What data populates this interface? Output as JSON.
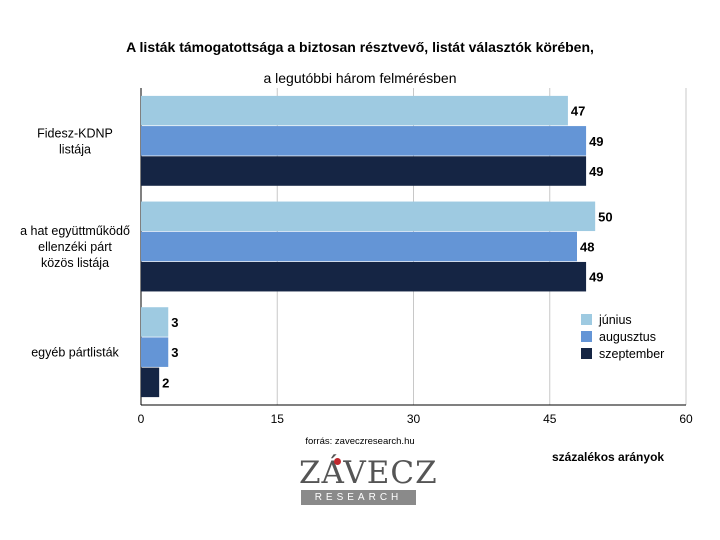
{
  "title_line1": "A listák támogatottsága a biztosan résztvevő, listát választók körében,",
  "title_line2": "a legutóbbi három felmérésben",
  "source": "forrás: zaveczresearch.hu",
  "unit_label": "százalékos arányok",
  "logo": {
    "main": "ZÁVECZ",
    "sub": "RESEARCH"
  },
  "colors": {
    "junius": "#9ecae1",
    "augusztus": "#6495d6",
    "szeptember": "#152544",
    "grid": "#c8c8c8",
    "axis": "#000000"
  },
  "chart_data": {
    "type": "bar",
    "orientation": "horizontal",
    "title": "A listák támogatottsága a biztosan résztvevő, listát választók körében, a legutóbbi három felmérésben",
    "xlabel": "százalékos arányok",
    "xlim": [
      0,
      60
    ],
    "xticks": [
      0,
      15,
      30,
      45,
      60
    ],
    "grid": true,
    "legend_position": "right",
    "categories": [
      [
        "Fidesz-KDNP",
        "listája"
      ],
      [
        "a hat együttműködő",
        "ellenzéki párt",
        "közös listája"
      ],
      [
        "egyéb pártlisták"
      ]
    ],
    "series": [
      {
        "name": "június",
        "values": [
          47,
          50,
          3
        ]
      },
      {
        "name": "augusztus",
        "values": [
          49,
          48,
          3
        ]
      },
      {
        "name": "szeptember",
        "values": [
          49,
          49,
          2
        ]
      }
    ]
  }
}
